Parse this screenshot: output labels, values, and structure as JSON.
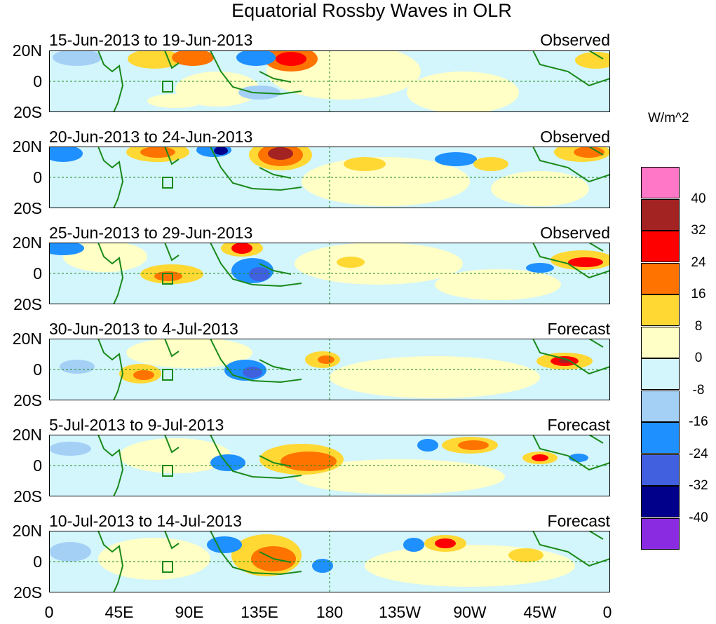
{
  "title": "Equatorial Rossby Waves in OLR",
  "colorbar": {
    "units": "W/m^2",
    "colors": [
      "#ff77c6",
      "#a32222",
      "#ff0000",
      "#ff7300",
      "#ffd833",
      "#ffffc6",
      "#d3f5fc",
      "#a4d0f6",
      "#1e90ff",
      "#4060e0",
      "#00008b",
      "#8a2be2"
    ],
    "labels": [
      "40",
      "32",
      "24",
      "16",
      "8",
      "0",
      "-8",
      "-16",
      "-24",
      "-32",
      "-40"
    ]
  },
  "y_ticks": [
    "20N",
    "0",
    "20S"
  ],
  "x_ticks": [
    "0",
    "45E",
    "90E",
    "135E",
    "180",
    "135W",
    "90W",
    "45W",
    "0"
  ],
  "panels": [
    {
      "period": "15-Jun-2013 to 19-Jun-2013",
      "status": "Observed"
    },
    {
      "period": "20-Jun-2013 to 24-Jun-2013",
      "status": "Observed"
    },
    {
      "period": "25-Jun-2013 to 29-Jun-2013",
      "status": "Observed"
    },
    {
      "period": "30-Jun-2013 to 4-Jul-2013",
      "status": "Forecast"
    },
    {
      "period": "5-Jul-2013 to 9-Jul-2013",
      "status": "Forecast"
    },
    {
      "period": "10-Jul-2013 to 14-Jul-2013",
      "status": "Forecast"
    }
  ],
  "colors": {
    "coastline": "#1a8a1a",
    "reference_line": "#1a8a1a",
    "frame": "#000000"
  }
}
